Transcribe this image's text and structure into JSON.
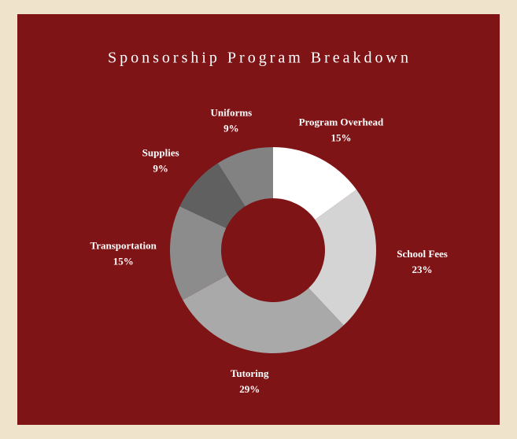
{
  "chart_data": {
    "type": "donut",
    "title": "Sponsorship Program Breakdown",
    "categories": [
      "Program Overhead",
      "School Fees",
      "Tutoring",
      "Transportation",
      "Supplies",
      "Uniforms"
    ],
    "values": [
      15,
      23,
      29,
      15,
      9,
      9
    ],
    "value_labels": [
      "15%",
      "23%",
      "29%",
      "15%",
      "9%",
      "9%"
    ],
    "colors": [
      "#ffffff",
      "#d4d4d4",
      "#a9a9a9",
      "#8c8c8c",
      "#606060",
      "#828282"
    ]
  }
}
